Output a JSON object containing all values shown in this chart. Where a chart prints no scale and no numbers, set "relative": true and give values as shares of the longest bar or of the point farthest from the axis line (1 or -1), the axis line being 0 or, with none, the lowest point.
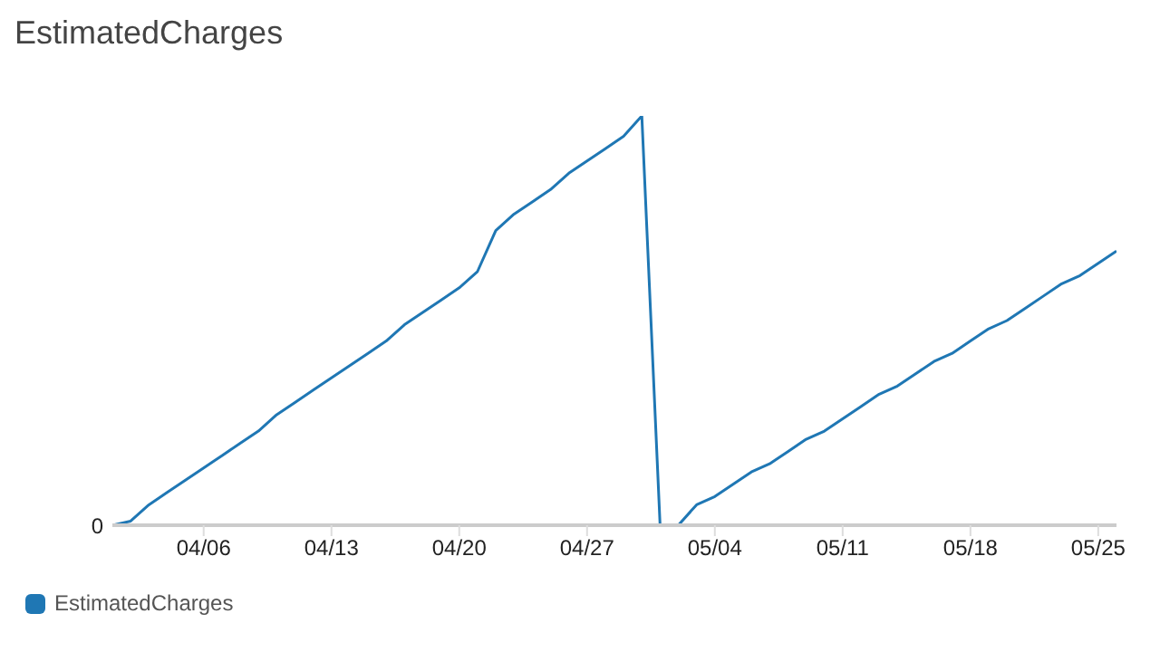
{
  "chart_data": {
    "type": "line",
    "title": "EstimatedCharges",
    "relative": true,
    "x": [
      "--04-01",
      "--04-02",
      "--04-03",
      "--04-04",
      "--04-05",
      "--04-06",
      "--04-07",
      "--04-08",
      "--04-09",
      "--04-10",
      "--04-11",
      "--04-12",
      "--04-13",
      "--04-14",
      "--04-15",
      "--04-16",
      "--04-17",
      "--04-18",
      "--04-19",
      "--04-20",
      "--04-21",
      "--04-22",
      "--04-23",
      "--04-24",
      "--04-25",
      "--04-26",
      "--04-27",
      "--04-28",
      "--04-29",
      "--04-30",
      "--05-01",
      "--05-02",
      "--05-03",
      "--05-04",
      "--05-05",
      "--05-06",
      "--05-07",
      "--05-08",
      "--05-09",
      "--05-10",
      "--05-11",
      "--05-12",
      "--05-13",
      "--05-14",
      "--05-15",
      "--05-16",
      "--05-17",
      "--05-18",
      "--05-19",
      "--05-20",
      "--05-21",
      "--05-22",
      "--05-23",
      "--05-24",
      "--05-25",
      "--05-26"
    ],
    "series": [
      {
        "name": "EstimatedCharges",
        "color": "#1f77b4",
        "values": [
          0,
          0.01,
          0.05,
          0.08,
          0.11,
          0.14,
          0.17,
          0.2,
          0.23,
          0.27,
          0.3,
          0.33,
          0.36,
          0.39,
          0.42,
          0.45,
          0.49,
          0.52,
          0.55,
          0.58,
          0.62,
          0.72,
          0.76,
          0.79,
          0.82,
          0.86,
          0.89,
          0.92,
          0.95,
          1,
          0,
          0,
          0.05,
          0.07,
          0.1,
          0.13,
          0.15,
          0.18,
          0.21,
          0.23,
          0.26,
          0.29,
          0.32,
          0.34,
          0.37,
          0.4,
          0.42,
          0.45,
          0.48,
          0.5,
          0.53,
          0.56,
          0.59,
          0.61,
          0.64,
          0.67
        ]
      }
    ],
    "xlim": [
      "--04-01",
      "--05-26"
    ],
    "xticks": [
      {
        "value": "--04-06",
        "label": "04/06"
      },
      {
        "value": "--04-13",
        "label": "04/13"
      },
      {
        "value": "--04-20",
        "label": "04/20"
      },
      {
        "value": "--04-27",
        "label": "04/27"
      },
      {
        "value": "--05-04",
        "label": "05/04"
      },
      {
        "value": "--05-11",
        "label": "05/11"
      },
      {
        "value": "--05-18",
        "label": "05/18"
      },
      {
        "value": "--05-25",
        "label": "05/25"
      }
    ],
    "annotations": [
      "0"
    ],
    "legend": "bottom left",
    "marker": "none",
    "line_style": "solid"
  }
}
